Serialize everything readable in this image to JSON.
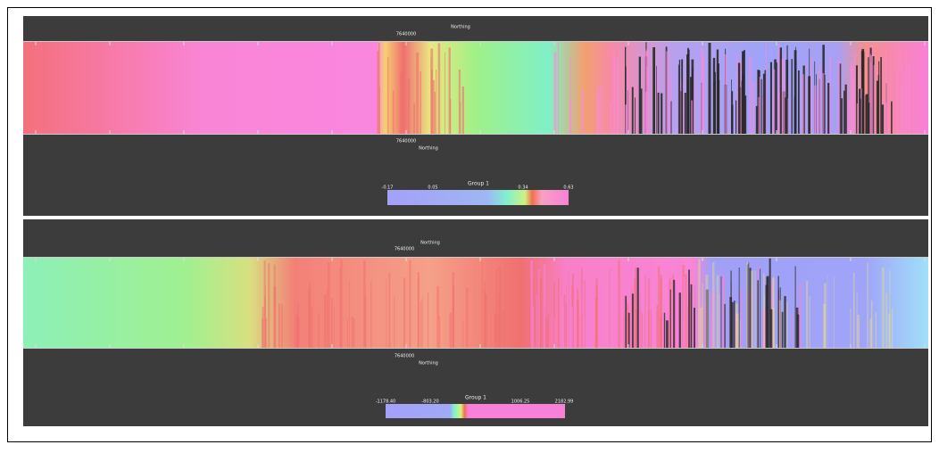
{
  "panels": [
    {
      "top_axis_label": "Northing",
      "top_tick": "7640000",
      "bottom_tick": "7640000",
      "bottom_axis_label": "Northing",
      "colorbar": {
        "title": "Group 1",
        "ticks": [
          "-0.17",
          "0.05",
          "0.34",
          "0.63"
        ]
      }
    },
    {
      "top_axis_label": "Northing",
      "top_tick": "7640000",
      "bottom_tick": "7640000",
      "bottom_axis_label": "Northing",
      "colorbar": {
        "title": "Group 1",
        "ticks": [
          "-1178.40",
          "-803.20",
          "1006.25",
          "2182.99"
        ]
      }
    }
  ]
}
